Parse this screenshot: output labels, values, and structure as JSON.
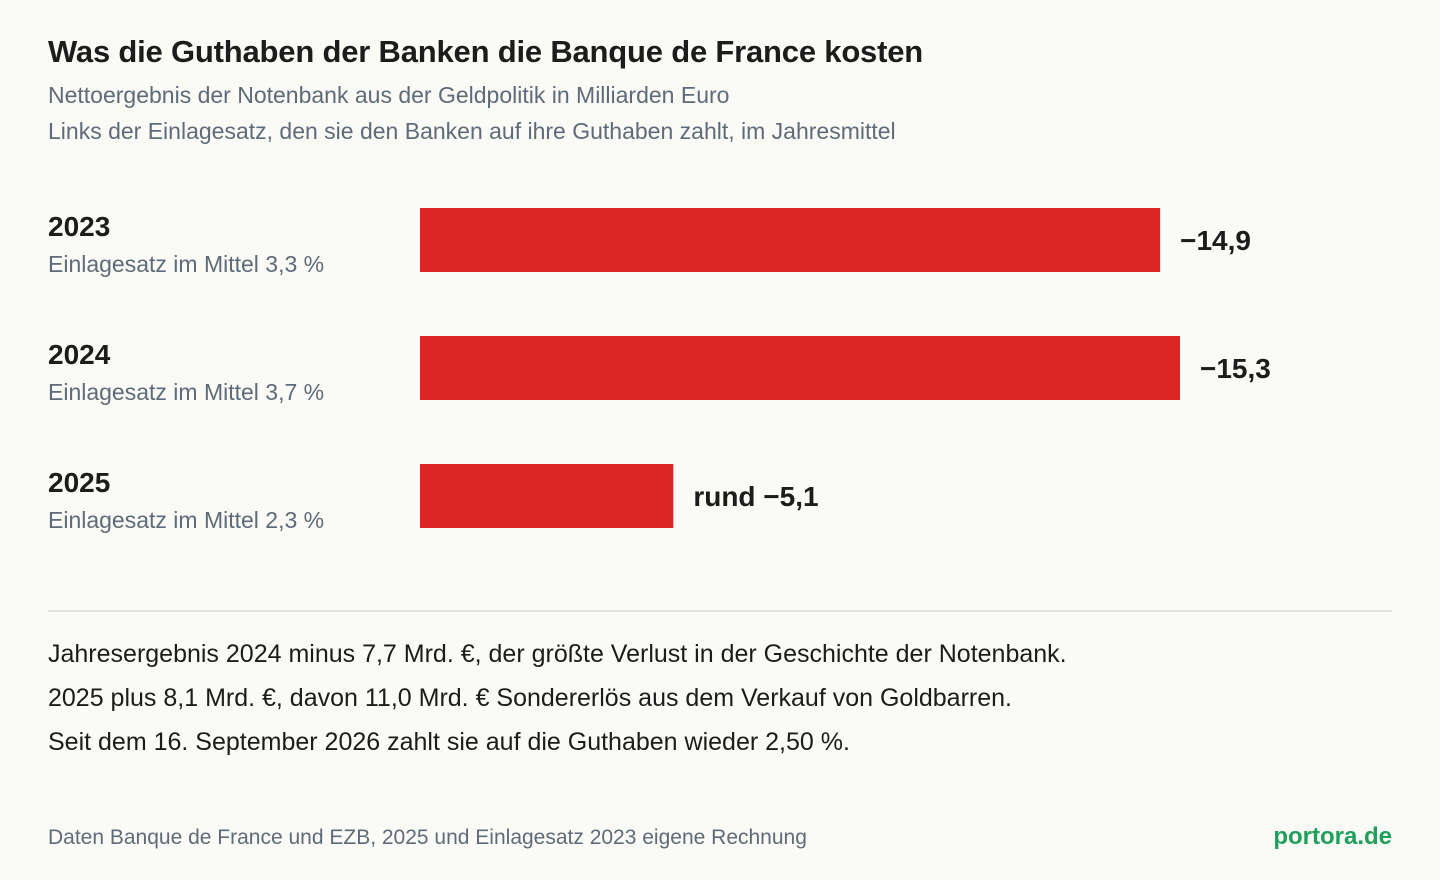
{
  "header": {
    "title": "Was die Guthaben der Banken die Banque de France kosten",
    "subtitle_1": "Nettoergebnis der Notenbank aus der Geldpolitik in Milliarden Euro",
    "subtitle_2": "Links der Einlagesatz, den sie den Banken auf ihre Guthaben zahlt, im Jahresmittel"
  },
  "chart_data": {
    "type": "bar",
    "orientation": "horizontal",
    "categories": [
      "2023",
      "2024",
      "2025"
    ],
    "category_sublabels": [
      "Einlagesatz im Mittel 3,3 %",
      "Einlagesatz im Mittel 3,7 %",
      "Einlagesatz im Mittel 2,3 %"
    ],
    "values": [
      -14.9,
      -15.3,
      -5.1
    ],
    "value_labels": [
      "−14,9",
      "−15,3",
      "rund −5,1"
    ],
    "bar_color": "#dc2626",
    "grid": false
  },
  "notes": [
    "Jahresergebnis 2024 minus 7,7 Mrd. €, der größte Verlust in der Geschichte der Notenbank.",
    "2025 plus 8,1 Mrd. €, davon 11,0 Mrd. € Sondererlös aus dem Verkauf von Goldbarren.",
    "Seit dem 16. September 2026 zahlt sie auf die Guthaben wieder 2,50 %."
  ],
  "footer": {
    "source": "Daten Banque de France und EZB, 2025 und Einlagesatz 2023 eigene Rechnung",
    "brand": "portora.de"
  }
}
